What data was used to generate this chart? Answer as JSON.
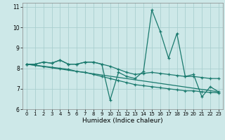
{
  "xlabel": "Humidex (Indice chaleur)",
  "xlim": [
    -0.5,
    23.5
  ],
  "ylim": [
    6,
    11.2
  ],
  "yticks": [
    6,
    7,
    8,
    9,
    10,
    11
  ],
  "xticks": [
    0,
    1,
    2,
    3,
    4,
    5,
    6,
    7,
    8,
    9,
    10,
    11,
    12,
    13,
    14,
    15,
    16,
    17,
    18,
    19,
    20,
    21,
    22,
    23
  ],
  "background_color": "#cde8e8",
  "grid_color": "#aacfcf",
  "line_color": "#1a7a6e",
  "series": [
    {
      "x": [
        0,
        1,
        2,
        3,
        4,
        5,
        6,
        7,
        8,
        9,
        10,
        11,
        12,
        13,
        14,
        15,
        16,
        17,
        18,
        19,
        20,
        21,
        22,
        23
      ],
      "y": [
        8.2,
        8.2,
        8.3,
        8.25,
        8.4,
        8.2,
        8.2,
        8.3,
        8.3,
        8.2,
        6.45,
        7.8,
        7.6,
        7.5,
        7.85,
        10.85,
        9.8,
        8.5,
        9.7,
        7.6,
        7.7,
        6.6,
        7.1,
        6.85
      ]
    },
    {
      "x": [
        0,
        1,
        2,
        3,
        4,
        5,
        6,
        7,
        8,
        9,
        10,
        11,
        12,
        13,
        14,
        15,
        16,
        17,
        18,
        19,
        20,
        21,
        22,
        23
      ],
      "y": [
        8.2,
        8.2,
        8.3,
        8.25,
        8.4,
        8.2,
        8.2,
        8.3,
        8.3,
        8.2,
        8.1,
        7.95,
        7.8,
        7.7,
        7.75,
        7.8,
        7.75,
        7.7,
        7.65,
        7.6,
        7.6,
        7.55,
        7.5,
        7.5
      ]
    },
    {
      "x": [
        0,
        1,
        2,
        3,
        4,
        5,
        6,
        7,
        8,
        9,
        10,
        11,
        12,
        13,
        14,
        15,
        16,
        17,
        18,
        19,
        20,
        21,
        22,
        23
      ],
      "y": [
        8.2,
        8.15,
        8.1,
        8.05,
        8.0,
        7.95,
        7.85,
        7.8,
        7.7,
        7.6,
        7.5,
        7.4,
        7.3,
        7.2,
        7.15,
        7.1,
        7.05,
        7.0,
        6.95,
        6.9,
        6.9,
        6.85,
        6.82,
        6.8
      ]
    },
    {
      "x": [
        0,
        23
      ],
      "y": [
        8.2,
        6.85
      ]
    }
  ]
}
